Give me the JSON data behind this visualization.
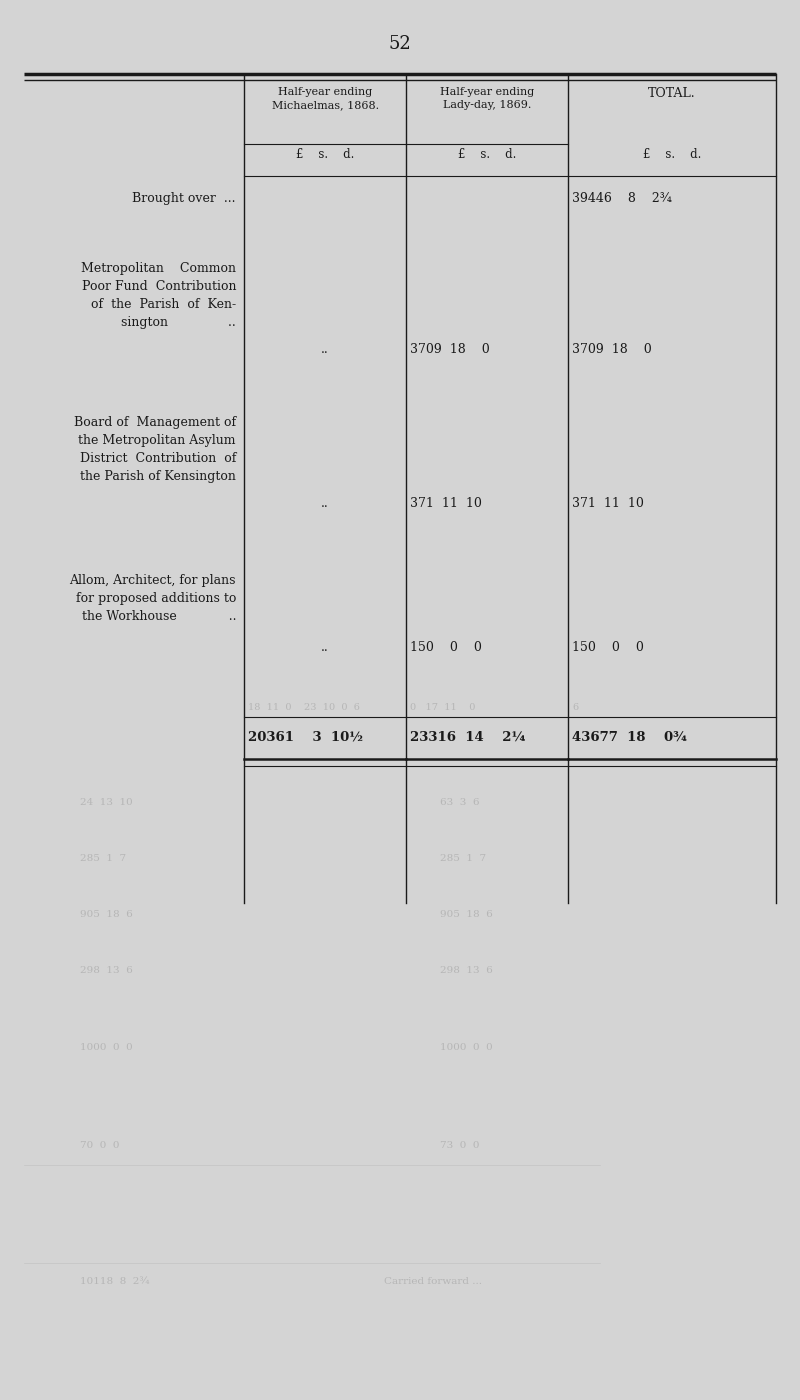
{
  "page_number": "52",
  "background_color": "#d4d4d4",
  "text_color": "#1a1a1a",
  "page_width": 8.0,
  "page_height": 14.0,
  "col1_label": "Half-year ending\nMichaelmas, 1868.",
  "col2_label": "Half-year ending\nLady-day, 1869.",
  "col3_label": "TOTAL.",
  "subheader": "£    s.    d.",
  "row1_desc": "Brought over  ...",
  "row1_col3": "39446    8    2¾",
  "row2_desc": "Metropolitan    Common\nPoor Fund  Contribution\nof  the  Parish  of  Ken-\nsington               ..",
  "row2_col2": "3709  18    0",
  "row2_col3": "3709  18    0",
  "row3_desc": "Board of  Management of\nthe Metropolitan Asylum\nDistrict  Contribution  of\nthe Parish of Kensington",
  "row3_col2": "371  11  10",
  "row3_col3": "371  11  10",
  "row4_desc": "Allom, Architect, for plans\nfor proposed additions to\nthe Workhouse             ..",
  "row4_col2": "150    0    0",
  "row4_col3": "150    0    0",
  "total_col1": "20361    3  10½",
  "total_col2": "23316  14    2¼",
  "total_col3": "43677  18    0¾",
  "dots": "..",
  "fade_color": "#999999",
  "fade_alpha": 0.5
}
